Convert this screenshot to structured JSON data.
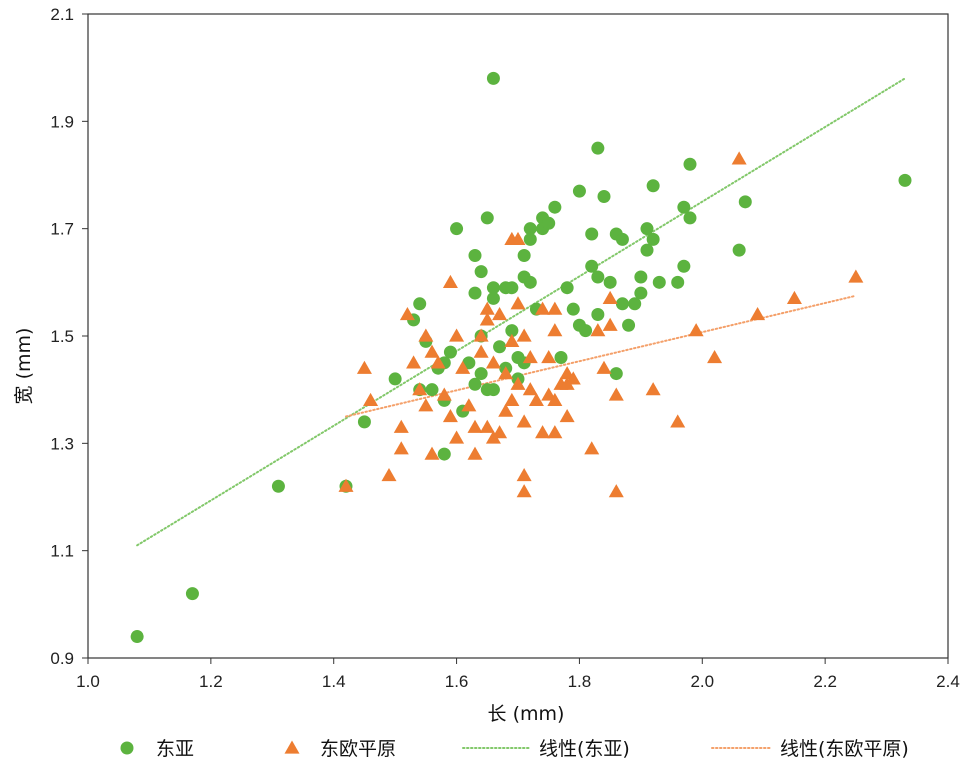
{
  "chart_data": {
    "type": "scatter",
    "xlabel": "长 (mm)",
    "ylabel": "宽 (mm)",
    "xlim": [
      1.0,
      2.4
    ],
    "ylim": [
      0.9,
      2.1
    ],
    "xticks": [
      "1.0",
      "1.2",
      "1.4",
      "1.6",
      "1.8",
      "2.0",
      "2.2",
      "2.4"
    ],
    "yticks": [
      "0.9",
      "1.1",
      "1.3",
      "1.5",
      "1.7",
      "1.9",
      "2.1"
    ],
    "grid": false,
    "legend_position": "bottom",
    "series": [
      {
        "name": "东亚",
        "marker": "circle",
        "color": "#5cb33f",
        "points": [
          [
            1.08,
            0.94
          ],
          [
            1.17,
            1.02
          ],
          [
            1.31,
            1.22
          ],
          [
            1.42,
            1.22
          ],
          [
            1.45,
            1.34
          ],
          [
            1.5,
            1.42
          ],
          [
            1.53,
            1.53
          ],
          [
            1.54,
            1.56
          ],
          [
            1.54,
            1.4
          ],
          [
            1.55,
            1.49
          ],
          [
            1.56,
            1.4
          ],
          [
            1.57,
            1.44
          ],
          [
            1.58,
            1.45
          ],
          [
            1.58,
            1.38
          ],
          [
            1.58,
            1.28
          ],
          [
            1.59,
            1.47
          ],
          [
            1.6,
            1.7
          ],
          [
            1.61,
            1.36
          ],
          [
            1.62,
            1.45
          ],
          [
            1.63,
            1.58
          ],
          [
            1.63,
            1.41
          ],
          [
            1.63,
            1.65
          ],
          [
            1.64,
            1.5
          ],
          [
            1.64,
            1.62
          ],
          [
            1.64,
            1.43
          ],
          [
            1.65,
            1.72
          ],
          [
            1.65,
            1.4
          ],
          [
            1.66,
            1.59
          ],
          [
            1.66,
            1.57
          ],
          [
            1.66,
            1.4
          ],
          [
            1.66,
            1.98
          ],
          [
            1.67,
            1.48
          ],
          [
            1.68,
            1.59
          ],
          [
            1.68,
            1.44
          ],
          [
            1.69,
            1.59
          ],
          [
            1.69,
            1.51
          ],
          [
            1.7,
            1.46
          ],
          [
            1.7,
            1.42
          ],
          [
            1.71,
            1.65
          ],
          [
            1.71,
            1.61
          ],
          [
            1.71,
            1.45
          ],
          [
            1.72,
            1.7
          ],
          [
            1.72,
            1.68
          ],
          [
            1.72,
            1.6
          ],
          [
            1.73,
            1.55
          ],
          [
            1.74,
            1.72
          ],
          [
            1.74,
            1.7
          ],
          [
            1.75,
            1.71
          ],
          [
            1.76,
            1.74
          ],
          [
            1.77,
            1.46
          ],
          [
            1.78,
            1.59
          ],
          [
            1.79,
            1.55
          ],
          [
            1.8,
            1.77
          ],
          [
            1.8,
            1.52
          ],
          [
            1.81,
            1.51
          ],
          [
            1.82,
            1.69
          ],
          [
            1.82,
            1.63
          ],
          [
            1.83,
            1.85
          ],
          [
            1.83,
            1.61
          ],
          [
            1.83,
            1.54
          ],
          [
            1.84,
            1.76
          ],
          [
            1.85,
            1.6
          ],
          [
            1.86,
            1.69
          ],
          [
            1.86,
            1.43
          ],
          [
            1.87,
            1.68
          ],
          [
            1.87,
            1.56
          ],
          [
            1.88,
            1.52
          ],
          [
            1.89,
            1.56
          ],
          [
            1.9,
            1.61
          ],
          [
            1.9,
            1.58
          ],
          [
            1.91,
            1.7
          ],
          [
            1.91,
            1.66
          ],
          [
            1.92,
            1.68
          ],
          [
            1.92,
            1.78
          ],
          [
            1.93,
            1.6
          ],
          [
            1.96,
            1.6
          ],
          [
            1.97,
            1.74
          ],
          [
            1.97,
            1.63
          ],
          [
            1.98,
            1.82
          ],
          [
            1.98,
            1.72
          ],
          [
            2.06,
            1.66
          ],
          [
            2.07,
            1.75
          ],
          [
            2.33,
            1.79
          ]
        ]
      },
      {
        "name": "东欧平原",
        "marker": "triangle",
        "color": "#ed7d31",
        "points": [
          [
            1.42,
            1.22
          ],
          [
            1.45,
            1.44
          ],
          [
            1.46,
            1.38
          ],
          [
            1.49,
            1.24
          ],
          [
            1.51,
            1.33
          ],
          [
            1.51,
            1.29
          ],
          [
            1.52,
            1.54
          ],
          [
            1.53,
            1.45
          ],
          [
            1.54,
            1.4
          ],
          [
            1.55,
            1.37
          ],
          [
            1.55,
            1.5
          ],
          [
            1.56,
            1.47
          ],
          [
            1.56,
            1.28
          ],
          [
            1.57,
            1.45
          ],
          [
            1.58,
            1.39
          ],
          [
            1.59,
            1.6
          ],
          [
            1.59,
            1.35
          ],
          [
            1.6,
            1.5
          ],
          [
            1.6,
            1.31
          ],
          [
            1.61,
            1.44
          ],
          [
            1.62,
            1.37
          ],
          [
            1.63,
            1.33
          ],
          [
            1.63,
            1.28
          ],
          [
            1.64,
            1.5
          ],
          [
            1.64,
            1.47
          ],
          [
            1.65,
            1.55
          ],
          [
            1.65,
            1.53
          ],
          [
            1.65,
            1.33
          ],
          [
            1.66,
            1.45
          ],
          [
            1.66,
            1.31
          ],
          [
            1.67,
            1.54
          ],
          [
            1.67,
            1.32
          ],
          [
            1.68,
            1.43
          ],
          [
            1.68,
            1.36
          ],
          [
            1.69,
            1.68
          ],
          [
            1.69,
            1.49
          ],
          [
            1.69,
            1.38
          ],
          [
            1.7,
            1.68
          ],
          [
            1.7,
            1.56
          ],
          [
            1.7,
            1.41
          ],
          [
            1.71,
            1.5
          ],
          [
            1.71,
            1.34
          ],
          [
            1.71,
            1.24
          ],
          [
            1.71,
            1.21
          ],
          [
            1.72,
            1.46
          ],
          [
            1.72,
            1.4
          ],
          [
            1.73,
            1.38
          ],
          [
            1.74,
            1.55
          ],
          [
            1.74,
            1.32
          ],
          [
            1.75,
            1.46
          ],
          [
            1.75,
            1.39
          ],
          [
            1.76,
            1.55
          ],
          [
            1.76,
            1.51
          ],
          [
            1.76,
            1.38
          ],
          [
            1.76,
            1.32
          ],
          [
            1.77,
            1.41
          ],
          [
            1.78,
            1.43
          ],
          [
            1.78,
            1.41
          ],
          [
            1.78,
            1.35
          ],
          [
            1.79,
            1.42
          ],
          [
            1.82,
            1.29
          ],
          [
            1.83,
            1.51
          ],
          [
            1.84,
            1.44
          ],
          [
            1.85,
            1.57
          ],
          [
            1.85,
            1.52
          ],
          [
            1.86,
            1.39
          ],
          [
            1.86,
            1.21
          ],
          [
            1.92,
            1.4
          ],
          [
            1.96,
            1.34
          ],
          [
            1.99,
            1.51
          ],
          [
            2.02,
            1.46
          ],
          [
            2.06,
            1.83
          ],
          [
            2.09,
            1.54
          ],
          [
            2.15,
            1.57
          ],
          [
            2.25,
            1.61
          ]
        ]
      }
    ],
    "trendlines": [
      {
        "name": "线性(东亚)",
        "color": "#82c86a",
        "style": "dotted",
        "x": [
          1.08,
          2.33
        ],
        "y": [
          1.11,
          1.98
        ]
      },
      {
        "name": "线性(东欧平原)",
        "color": "#f4a06a",
        "style": "dotted",
        "x": [
          1.42,
          2.25
        ],
        "y": [
          1.35,
          1.575
        ]
      }
    ]
  },
  "legend": {
    "items": [
      {
        "label": "东亚",
        "kind": "circle",
        "color": "#5cb33f"
      },
      {
        "label": "东欧平原",
        "kind": "triangle",
        "color": "#ed7d31"
      },
      {
        "label": "线性(东亚)",
        "kind": "dotted-line",
        "color": "#82c86a"
      },
      {
        "label": "线性(东欧平原)",
        "kind": "dotted-line",
        "color": "#f4a06a"
      }
    ]
  }
}
